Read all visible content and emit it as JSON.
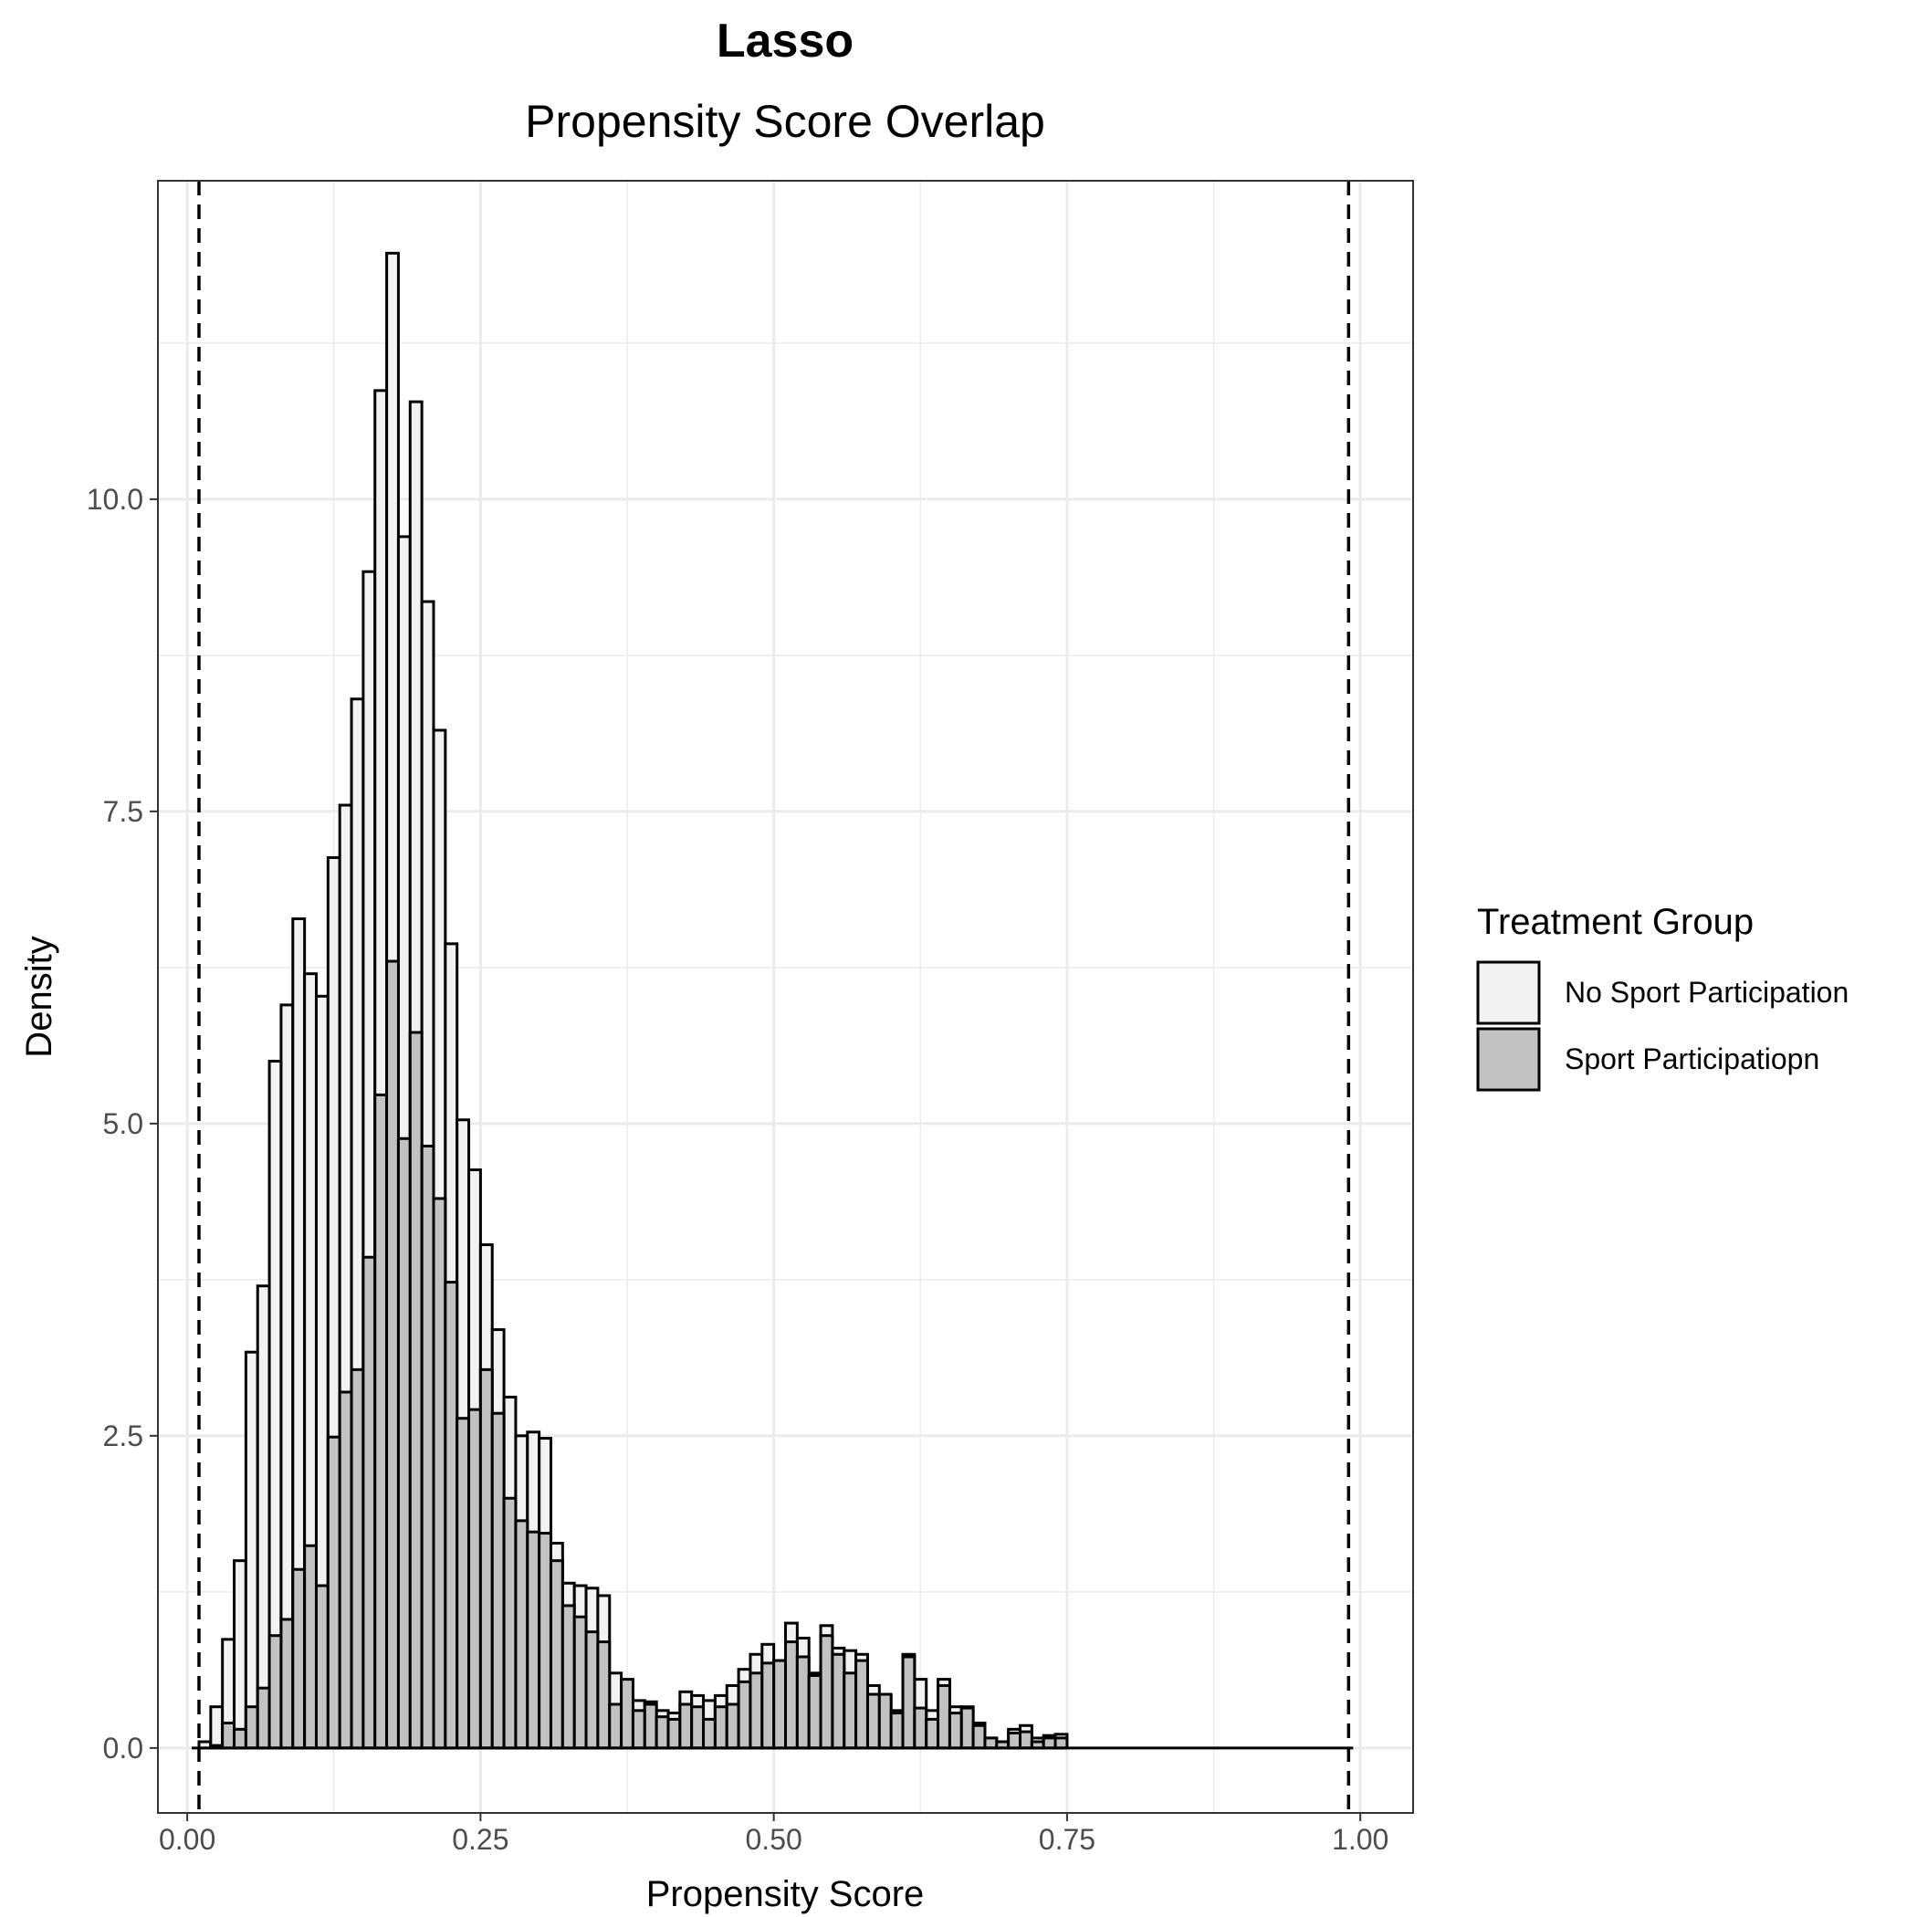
{
  "chart_data": {
    "type": "bar",
    "title": "Lasso",
    "subtitle": "Propensity Score Overlap",
    "xlabel": "Propensity Score",
    "ylabel": "Density",
    "xlim": [
      -0.025,
      1.045
    ],
    "ylim": [
      -0.52,
      12.55
    ],
    "x_ticks": [
      0.0,
      0.25,
      0.5,
      0.75,
      1.0
    ],
    "x_tick_labels": [
      "0.00",
      "0.25",
      "0.50",
      "0.75",
      "1.00"
    ],
    "y_ticks": [
      0.0,
      2.5,
      5.0,
      7.5,
      10.0
    ],
    "y_tick_labels": [
      "0.0",
      "2.5",
      "5.0",
      "7.5",
      "10.0"
    ],
    "grid": true,
    "bin_start": 0.01,
    "bin_width": 0.01,
    "vlines": [
      0.01,
      0.99
    ],
    "legend_title": "Treatment Group",
    "legend_position": "right",
    "series": [
      {
        "name": "No Sport Participation",
        "color": "#f2f2f2",
        "values": [
          0.05,
          0.33,
          0.87,
          1.5,
          3.17,
          3.7,
          5.5,
          5.95,
          6.64,
          6.2,
          6.02,
          7.13,
          7.55,
          8.4,
          9.42,
          10.87,
          11.97,
          9.7,
          10.78,
          9.18,
          8.15,
          6.44,
          5.03,
          4.63,
          4.03,
          3.35,
          2.81,
          2.5,
          2.53,
          2.48,
          1.64,
          1.32,
          1.3,
          1.28,
          1.22,
          0.6,
          0.4,
          0.38,
          0.37,
          0.3,
          0.28,
          0.45,
          0.42,
          0.38,
          0.42,
          0.5,
          0.63,
          0.75,
          0.83,
          0.7,
          1.0,
          0.88,
          0.6,
          0.98,
          0.8,
          0.78,
          0.75,
          0.5,
          0.42,
          0.3,
          0.75,
          0.55,
          0.3,
          0.55,
          0.33,
          0.33,
          0.2,
          0.08,
          0.05,
          0.15,
          0.18,
          0.08,
          0.1,
          0.11
        ]
      },
      {
        "name": "Sport Participatiopn",
        "color": "#c2c2c2",
        "values": [
          0.0,
          0.02,
          0.2,
          0.15,
          0.33,
          0.48,
          0.9,
          1.03,
          1.43,
          1.62,
          1.3,
          2.49,
          2.85,
          3.03,
          3.93,
          5.23,
          6.3,
          4.88,
          5.73,
          4.82,
          4.4,
          3.73,
          2.64,
          2.71,
          3.03,
          2.68,
          2.0,
          1.82,
          1.73,
          1.72,
          1.5,
          1.14,
          1.05,
          0.93,
          0.85,
          0.35,
          0.55,
          0.3,
          0.35,
          0.25,
          0.23,
          0.35,
          0.33,
          0.23,
          0.33,
          0.35,
          0.53,
          0.6,
          0.68,
          0.7,
          0.85,
          0.73,
          0.58,
          0.9,
          0.75,
          0.6,
          0.7,
          0.43,
          0.43,
          0.28,
          0.73,
          0.32,
          0.23,
          0.5,
          0.28,
          0.32,
          0.18,
          0.08,
          0.05,
          0.12,
          0.13,
          0.05,
          0.08,
          0.08
        ]
      }
    ]
  }
}
